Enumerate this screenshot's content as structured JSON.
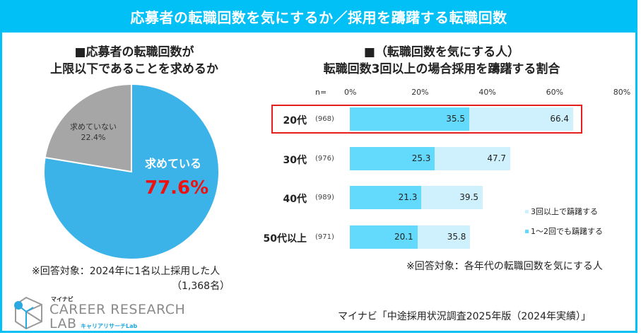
{
  "header": {
    "title": "応募者の転職回数を気にするか／採用を躊躇する転職回数"
  },
  "left_panel": {
    "title_line1": "■応募者の転職回数が",
    "title_line2": "上限以下であることを求めるか",
    "pie": {
      "no_label": "求めていない",
      "no_value": "22.4%",
      "yes_label": "求めている",
      "yes_value": "77.6%"
    },
    "note_line1": "※回答対象：2024年に1名以上採用した人",
    "note_line2": "（1,368名）"
  },
  "right_panel": {
    "title_line1": "■（転職回数を気にする人）",
    "title_line2": "転職回数3回以上の場合採用を躊躇する割合",
    "n_label": "n=",
    "note": "※回答対象：各年代の転職回数を気にする人"
  },
  "logo": {
    "brand_small": "マイナビ",
    "line1": "CAREER RESEARCH",
    "line2": "LAB",
    "kana": "キャリアリサーチLab"
  },
  "source": "マイナビ「中途採用状況調査2025年版（2024年実績）」",
  "colors": {
    "brand": "#00c0f6",
    "pie_yes": "#3cb3e8",
    "pie_no": "#a6a6a6",
    "bar_dark": "#63d9fb",
    "bar_light": "#cff1fd",
    "highlight": "#e61e1e",
    "emphasis_text": "#ee1111"
  },
  "chart_data": [
    {
      "type": "pie",
      "title": "■応募者の転職回数が上限以下であることを求めるか",
      "categories": [
        "求めている",
        "求めていない"
      ],
      "values": [
        77.6,
        22.4
      ],
      "unit": "%",
      "note": "※回答対象：2024年に1名以上採用した人（1,368名）"
    },
    {
      "type": "bar",
      "orientation": "horizontal",
      "title": "■（転職回数を気にする人）転職回数3回以上の場合採用を躊躇する割合",
      "categories": [
        "20代",
        "30代",
        "40代",
        "50代以上"
      ],
      "n": [
        "(968)",
        "(976)",
        "(989)",
        "(971)"
      ],
      "series": [
        {
          "name": "1～2回でも躊躇する",
          "values": [
            35.5,
            25.3,
            21.3,
            20.1
          ]
        },
        {
          "name": "3回以上で躊躇する",
          "values": [
            66.4,
            47.7,
            39.5,
            35.8
          ]
        }
      ],
      "xticks": [
        "0%",
        "20%",
        "40%",
        "60%",
        "80%"
      ],
      "xlim": [
        0,
        80
      ],
      "highlighted_category": "20代",
      "legend": [
        "3回以上で躊躇する",
        "1～2回でも躊躇する"
      ],
      "legend_position": "right",
      "note": "※回答対象：各年代の転職回数を気にする人"
    }
  ]
}
